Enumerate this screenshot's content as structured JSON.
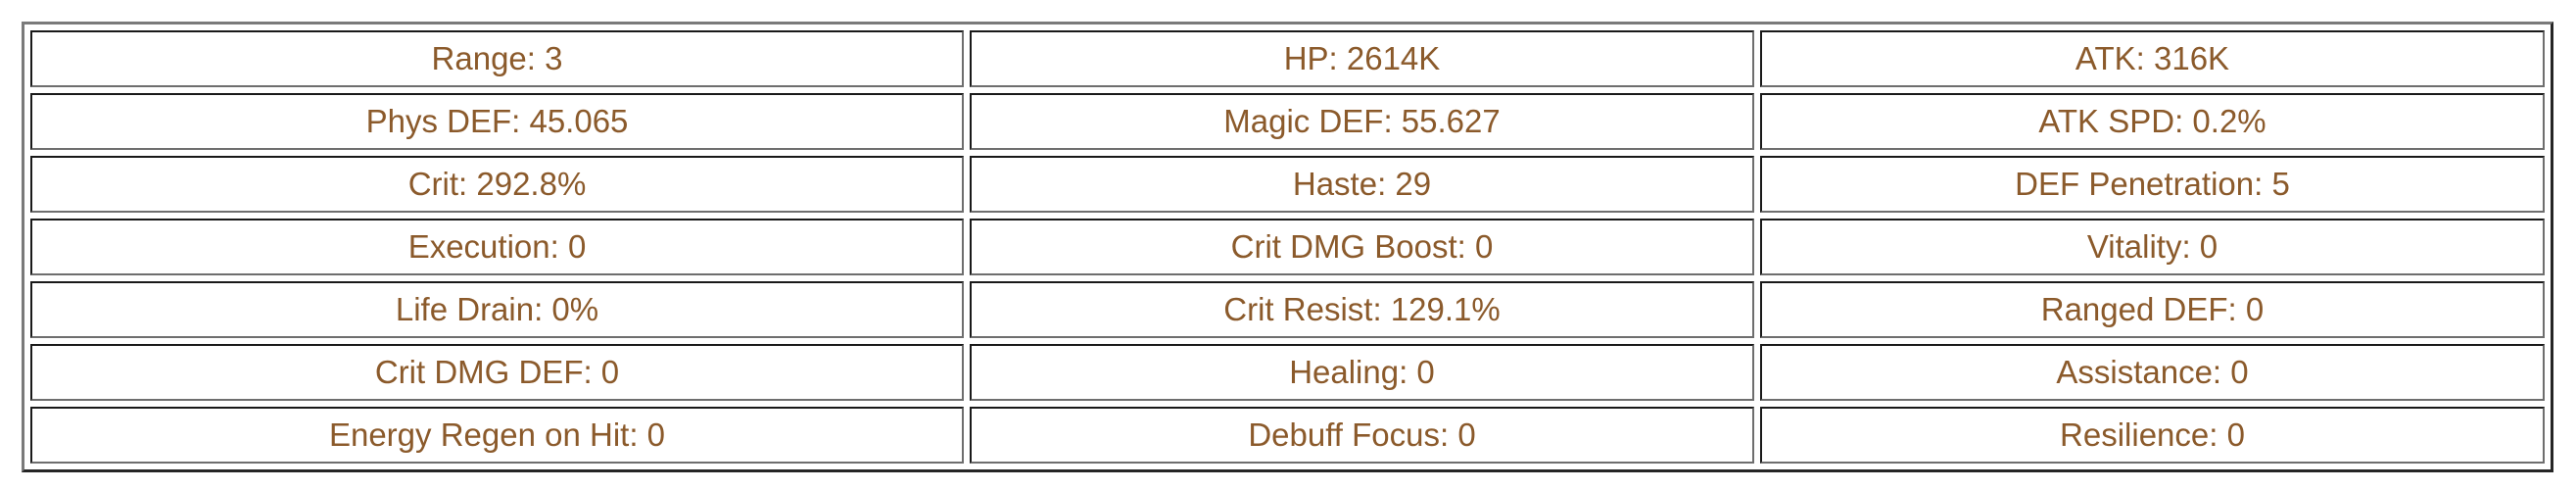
{
  "text_color": "#8b5a2b",
  "rows": [
    [
      "Range: 3",
      "HP: 2614K",
      "ATK: 316K"
    ],
    [
      "Phys DEF: 45.065",
      "Magic DEF: 55.627",
      "ATK SPD: 0.2%"
    ],
    [
      "Crit: 292.8%",
      "Haste: 29",
      "DEF Penetration: 5"
    ],
    [
      "Execution: 0",
      "Crit DMG Boost: 0",
      "Vitality: 0"
    ],
    [
      "Life Drain: 0%",
      "Crit Resist: 129.1%",
      "Ranged DEF: 0"
    ],
    [
      "Crit DMG DEF: 0",
      "Healing: 0",
      "Assistance: 0"
    ],
    [
      "Energy Regen on Hit: 0",
      "Debuff Focus: 0",
      "Resilience: 0"
    ]
  ]
}
